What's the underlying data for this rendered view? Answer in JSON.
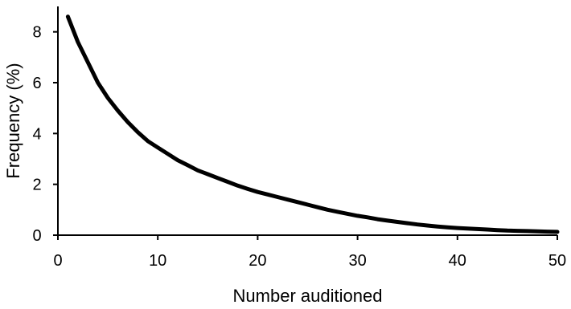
{
  "chart_data": {
    "type": "line",
    "title": "",
    "xlabel": "Number auditioned",
    "ylabel": "Frequency (%)",
    "xlim": [
      0,
      50
    ],
    "ylim": [
      0,
      9
    ],
    "xticks": [
      0,
      10,
      20,
      30,
      40,
      50
    ],
    "yticks": [
      0,
      2,
      4,
      6,
      8
    ],
    "xtick_labels": [
      "0",
      "10",
      "20",
      "30",
      "40",
      "50"
    ],
    "ytick_labels": [
      "0",
      "2",
      "4",
      "6",
      "8"
    ],
    "grid": false,
    "legend": "none",
    "series": [
      {
        "color": "#000000",
        "x": [
          1,
          2,
          3,
          4,
          5,
          6,
          7,
          8,
          9,
          10,
          11,
          12,
          13,
          14,
          15,
          16,
          17,
          18,
          19,
          20,
          21,
          22,
          23,
          24,
          25,
          26,
          27,
          28,
          29,
          30,
          31,
          32,
          33,
          34,
          35,
          36,
          37,
          38,
          39,
          40,
          41,
          42,
          43,
          44,
          45,
          46,
          47,
          48,
          49,
          50
        ],
        "y": [
          8.6,
          7.6,
          6.8,
          6.0,
          5.4,
          4.9,
          4.45,
          4.05,
          3.7,
          3.45,
          3.2,
          2.95,
          2.75,
          2.55,
          2.4,
          2.25,
          2.1,
          1.95,
          1.82,
          1.7,
          1.6,
          1.5,
          1.4,
          1.3,
          1.2,
          1.1,
          1.0,
          0.92,
          0.84,
          0.76,
          0.7,
          0.63,
          0.57,
          0.52,
          0.47,
          0.42,
          0.38,
          0.34,
          0.31,
          0.28,
          0.26,
          0.24,
          0.22,
          0.2,
          0.18,
          0.17,
          0.16,
          0.15,
          0.14,
          0.13
        ]
      }
    ]
  }
}
